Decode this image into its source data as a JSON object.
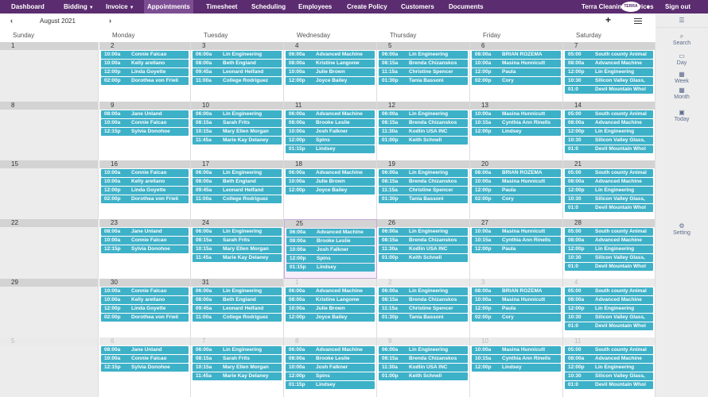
{
  "nav": {
    "items": [
      {
        "label": "Dashboard",
        "caret": false,
        "active": false
      },
      {
        "label": "Bidding",
        "caret": true,
        "active": false
      },
      {
        "label": "Invoice",
        "caret": true,
        "active": false
      },
      {
        "label": "Appointments",
        "caret": false,
        "active": true
      },
      {
        "label": "Timesheet",
        "caret": false,
        "active": false
      },
      {
        "label": "Scheduling",
        "caret": false,
        "active": false
      },
      {
        "label": "Employees",
        "caret": false,
        "active": false
      },
      {
        "label": "Create Policy",
        "caret": false,
        "active": false
      },
      {
        "label": "Customers",
        "caret": false,
        "active": false
      },
      {
        "label": "Documents",
        "caret": false,
        "active": false
      }
    ],
    "company": "Terra Cleaning Services",
    "logo_text": "TERRA",
    "signout": "Sign out"
  },
  "calendar": {
    "month_title": "August 2021",
    "prev_icon": "‹",
    "next_icon": "›",
    "add_icon": "+",
    "days": [
      "Sunday",
      "Monday",
      "Tuesday",
      "Wednesday",
      "Thursday",
      "Friday",
      "Saturday"
    ],
    "event_color": "#3db1c8",
    "weeks": [
      [
        {
          "date": "1",
          "events": []
        },
        {
          "date": "2",
          "events": [
            [
              "10:00a",
              "Connie Falcao"
            ],
            [
              "10:00a",
              "Kelly arellano"
            ],
            [
              "12:00p",
              "Linda Goyette"
            ],
            [
              "02:00p",
              "Dorothea von Frieli"
            ]
          ]
        },
        {
          "date": "3",
          "events": [
            [
              "06:00a",
              "Lin Engineering"
            ],
            [
              "08:00a",
              "Beth England"
            ],
            [
              "09:45a",
              "Leonard Helfand"
            ],
            [
              "11:00a",
              "College Rodriguez"
            ]
          ]
        },
        {
          "date": "4",
          "events": [
            [
              "06:00a",
              "Advanced Machine"
            ],
            [
              "08:00a",
              "Kristine Langonw"
            ],
            [
              "10:00a",
              "Julie Brown"
            ],
            [
              "12:00p",
              "Joyce Bailey"
            ]
          ]
        },
        {
          "date": "5",
          "events": [
            [
              "06:00a",
              "Lin Engineering"
            ],
            [
              "08:15a",
              "Brenda Chizanskos"
            ],
            [
              "11:15a",
              "Christine Spencer"
            ],
            [
              "01:30p",
              "Tania Bassoni"
            ]
          ]
        },
        {
          "date": "6",
          "events": [
            [
              "08:00a",
              "BRIAN ROZEMA"
            ],
            [
              "10:00a",
              "Masina Hunnicutt"
            ],
            [
              "12:00p",
              "Paula"
            ],
            [
              "02:00p",
              "Cory"
            ]
          ]
        },
        {
          "date": "7",
          "events": [
            [
              "05:00",
              "South county Animal"
            ],
            [
              "08:00a",
              "Advanced Machine"
            ],
            [
              "12:00p",
              "Lin Engineering"
            ],
            [
              "10:30",
              "Silicon Valley Glass,"
            ],
            [
              "01:0",
              "Devil Mountain Whol"
            ]
          ]
        }
      ],
      [
        {
          "date": "8",
          "events": []
        },
        {
          "date": "9",
          "events": [
            [
              "08:00a",
              "Jane Unland"
            ],
            [
              "10:00a",
              "Connie Falcao"
            ],
            [
              "12:15p",
              "Sylvia Donohoe"
            ]
          ]
        },
        {
          "date": "10",
          "events": [
            [
              "06:00a",
              "Lin Engineering"
            ],
            [
              "08:15a",
              "Sarah Frits"
            ],
            [
              "10:15a",
              "Mary Ellen Morgan"
            ],
            [
              "11:45a",
              "Marie Kay Delaney"
            ]
          ]
        },
        {
          "date": "11",
          "events": [
            [
              "06:00a",
              "Advanced Machine"
            ],
            [
              "08:00a",
              "Brooke Leslie"
            ],
            [
              "10:00a",
              "Josh Falkner"
            ],
            [
              "12:00p",
              "Spins"
            ],
            [
              "01:15p",
              "Lindsey"
            ]
          ]
        },
        {
          "date": "12",
          "events": [
            [
              "06:00a",
              "Lin Engineering"
            ],
            [
              "08:15a",
              "Brenda Chizanskos"
            ],
            [
              "11:30a",
              "Kodlin USA INC"
            ],
            [
              "01:00p",
              "Keith Schnell"
            ]
          ]
        },
        {
          "date": "13",
          "events": [
            [
              "10:00a",
              "Masina Hunnicutt"
            ],
            [
              "10:15a",
              "Cynthia Ann Rinells"
            ],
            [
              "12:00p",
              "Lindsey"
            ]
          ]
        },
        {
          "date": "14",
          "events": [
            [
              "05:00",
              "South county Animal"
            ],
            [
              "08:00a",
              "Advanced Machine"
            ],
            [
              "12:00p",
              "Lin Engineering"
            ],
            [
              "10:30",
              "Silicon Valley Glass,"
            ],
            [
              "01:0",
              "Devil Mountain Whol"
            ]
          ]
        }
      ],
      [
        {
          "date": "15",
          "events": []
        },
        {
          "date": "16",
          "events": [
            [
              "10:00a",
              "Connie Falcao"
            ],
            [
              "10:00a",
              "Kelly arellano"
            ],
            [
              "12:00p",
              "Linda Goyette"
            ],
            [
              "02:00p",
              "Dorothea von Frieli"
            ]
          ]
        },
        {
          "date": "17",
          "events": [
            [
              "06:00a",
              "Lin Engineering"
            ],
            [
              "08:00a",
              "Beth England"
            ],
            [
              "09:45a",
              "Leonard Helfand"
            ],
            [
              "11:00a",
              "College Rodriguez"
            ]
          ]
        },
        {
          "date": "18",
          "events": [
            [
              "06:00a",
              "Advanced Machine"
            ],
            [
              "10:00a",
              "Julie Brown"
            ],
            [
              "12:00p",
              "Joyce Bailey"
            ]
          ]
        },
        {
          "date": "19",
          "events": [
            [
              "06:00a",
              "Lin Engineering"
            ],
            [
              "08:15a",
              "Brenda Chizanskos"
            ],
            [
              "11:15a",
              "Christine Spencer"
            ],
            [
              "01:30p",
              "Tania Bassoni"
            ]
          ]
        },
        {
          "date": "20",
          "events": [
            [
              "08:00a",
              "BRIAN ROZEMA"
            ],
            [
              "10:00a",
              "Masina Hunnicutt"
            ],
            [
              "12:00p",
              "Paula"
            ],
            [
              "02:00p",
              "Cory"
            ]
          ]
        },
        {
          "date": "21",
          "events": [
            [
              "05:00",
              "South county Animal"
            ],
            [
              "08:00a",
              "Advanced Machine"
            ],
            [
              "12:00p",
              "Lin Engineering"
            ],
            [
              "10:30",
              "Silicon Valley Glass,"
            ],
            [
              "01:0",
              "Devil Mountain Whol"
            ]
          ]
        }
      ],
      [
        {
          "date": "22",
          "events": []
        },
        {
          "date": "23",
          "events": [
            [
              "08:00a",
              "Jane Unland"
            ],
            [
              "10:00a",
              "Connie Falcao"
            ],
            [
              "12:15p",
              "Sylvia Donohoe"
            ]
          ]
        },
        {
          "date": "24",
          "events": [
            [
              "06:00a",
              "Lin Engineering"
            ],
            [
              "08:15a",
              "Sarah Frits"
            ],
            [
              "10:15a",
              "Mary Ellen Morgan"
            ],
            [
              "11:45a",
              "Marie Kay Delaney"
            ]
          ]
        },
        {
          "date": "25",
          "today": true,
          "events": [
            [
              "06:00a",
              "Advanced Machine"
            ],
            [
              "08:00a",
              "Brooke Leslie"
            ],
            [
              "10:00a",
              "Josh Falkner"
            ],
            [
              "12:00p",
              "Spins"
            ],
            [
              "01:15p",
              "Lindsey"
            ]
          ]
        },
        {
          "date": "26",
          "events": [
            [
              "06:00a",
              "Lin Engineering"
            ],
            [
              "08:15a",
              "Brenda Chizanskos"
            ],
            [
              "11:30a",
              "Kodlin USA INC"
            ],
            [
              "01:00p",
              "Keith Schnell"
            ]
          ]
        },
        {
          "date": "27",
          "events": [
            [
              "10:00a",
              "Masina Hunnicutt"
            ],
            [
              "10:15a",
              "Cynthia Ann Rinells"
            ],
            [
              "12:00p",
              "Paula"
            ]
          ]
        },
        {
          "date": "28",
          "events": [
            [
              "05:00",
              "South county Animal"
            ],
            [
              "08:00a",
              "Advanced Machine"
            ],
            [
              "12:00p",
              "Lin Engineering"
            ],
            [
              "10:30",
              "Silicon Valley Glass,"
            ],
            [
              "01:0",
              "Devil Mountain Whol"
            ]
          ]
        }
      ],
      [
        {
          "date": "29",
          "events": []
        },
        {
          "date": "30",
          "events": [
            [
              "10:00a",
              "Connie Falcao"
            ],
            [
              "10:00a",
              "Kelly arellano"
            ],
            [
              "12:00p",
              "Linda Goyette"
            ],
            [
              "02:00p",
              "Dorothea von Frieli"
            ]
          ]
        },
        {
          "date": "31",
          "events": [
            [
              "06:00a",
              "Lin Engineering"
            ],
            [
              "08:00a",
              "Beth England"
            ],
            [
              "09:45a",
              "Leonard Helfand"
            ],
            [
              "11:00a",
              "College Rodriguez"
            ]
          ]
        },
        {
          "date": "1",
          "other": true,
          "events": [
            [
              "06:00a",
              "Advanced Machine"
            ],
            [
              "08:00a",
              "Kristine Langonw"
            ],
            [
              "10:00a",
              "Julie Brown"
            ],
            [
              "12:00p",
              "Joyce Bailey"
            ]
          ]
        },
        {
          "date": "2",
          "other": true,
          "events": [
            [
              "06:00a",
              "Lin Engineering"
            ],
            [
              "08:15a",
              "Brenda Chizanskos"
            ],
            [
              "11:15a",
              "Christine Spencer"
            ],
            [
              "01:30p",
              "Tania Bassoni"
            ]
          ]
        },
        {
          "date": "3",
          "other": true,
          "events": [
            [
              "08:00a",
              "BRIAN ROZEMA"
            ],
            [
              "10:00a",
              "Masina Hunnicutt"
            ],
            [
              "12:00p",
              "Paula"
            ],
            [
              "02:00p",
              "Cory"
            ]
          ]
        },
        {
          "date": "4",
          "other": true,
          "events": [
            [
              "05:00",
              "South county Animal"
            ],
            [
              "08:00a",
              "Advanced Machine"
            ],
            [
              "12:00p",
              "Lin Engineering"
            ],
            [
              "10:30",
              "Silicon Valley Glass,"
            ],
            [
              "01:0",
              "Devil Mountain Whol"
            ]
          ]
        }
      ],
      [
        {
          "date": "5",
          "other": true,
          "events": []
        },
        {
          "date": "6",
          "other": true,
          "events": [
            [
              "08:00a",
              "Jane Unland"
            ],
            [
              "10:00a",
              "Connie Falcao"
            ],
            [
              "12:15p",
              "Sylvia Donohoe"
            ]
          ]
        },
        {
          "date": "7",
          "other": true,
          "events": [
            [
              "06:00a",
              "Lin Engineering"
            ],
            [
              "08:15a",
              "Sarah Frits"
            ],
            [
              "10:15a",
              "Mary Ellen Morgan"
            ],
            [
              "11:45a",
              "Marie Kay Delaney"
            ]
          ]
        },
        {
          "date": "8",
          "other": true,
          "events": [
            [
              "06:00a",
              "Advanced Machine"
            ],
            [
              "08:00a",
              "Brooke Leslie"
            ],
            [
              "10:00a",
              "Josh Falkner"
            ],
            [
              "12:00p",
              "Spins"
            ],
            [
              "01:15p",
              "Lindsey"
            ]
          ]
        },
        {
          "date": "9",
          "other": true,
          "events": [
            [
              "06:00a",
              "Lin Engineering"
            ],
            [
              "08:15a",
              "Brenda Chizanskos"
            ],
            [
              "11:30a",
              "Kodlin USA INC"
            ],
            [
              "01:00p",
              "Keith Schnell"
            ]
          ]
        },
        {
          "date": "10",
          "other": true,
          "events": [
            [
              "10:00a",
              "Masina Hunnicutt"
            ],
            [
              "10:15a",
              "Cynthia Ann Rinells"
            ],
            [
              "12:00p",
              "Lindsey"
            ]
          ]
        },
        {
          "date": "11",
          "other": true,
          "events": [
            [
              "05:00",
              "South county Animal"
            ],
            [
              "08:00a",
              "Advanced Machine"
            ],
            [
              "12:00p",
              "Lin Engineering"
            ],
            [
              "10:30",
              "Silicon Valley Glass,"
            ],
            [
              "01:0",
              "Devil Mountain Whol"
            ]
          ]
        }
      ]
    ]
  },
  "sidebar": {
    "items": [
      {
        "label": "Search",
        "icon": "search-icon",
        "glyph": "⌕"
      },
      {
        "label": "Day",
        "icon": "day-icon",
        "glyph": "▭"
      },
      {
        "label": "Week",
        "icon": "week-icon",
        "glyph": "▦"
      },
      {
        "label": "Month",
        "icon": "month-icon",
        "glyph": "▦"
      },
      {
        "label": "Today",
        "icon": "today-icon",
        "glyph": "▣"
      },
      {
        "label": "Setting",
        "icon": "gear-icon",
        "glyph": "⚙"
      }
    ]
  }
}
